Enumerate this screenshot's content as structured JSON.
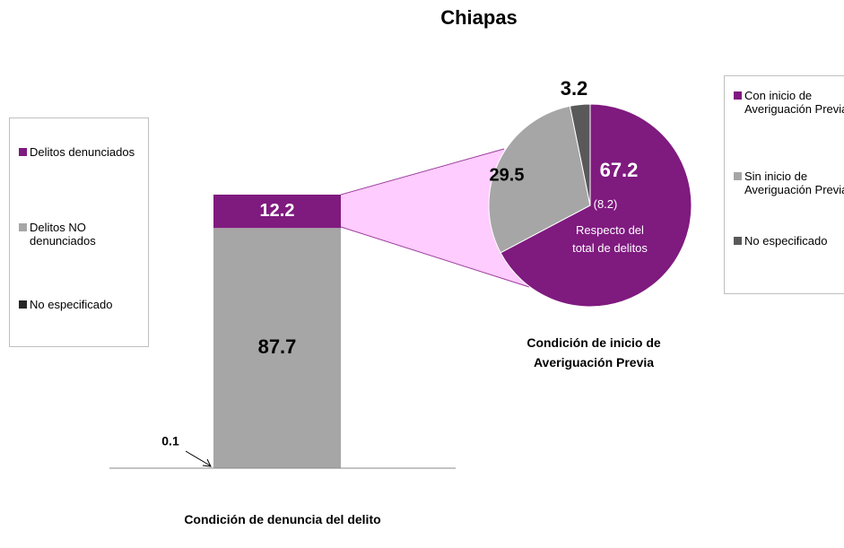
{
  "title": "Chiapas",
  "chart_data": [
    {
      "type": "stacked_bar",
      "categories": [
        "Condición de denuncia del delito"
      ],
      "series": [
        {
          "name": "Delitos denunciados",
          "color": "#7f1a7f",
          "values": [
            12.2
          ]
        },
        {
          "name": "Delitos NO denunciados",
          "color": "#a6a6a6",
          "values": [
            87.7
          ]
        },
        {
          "name": "No especificado",
          "color": "#262626",
          "values": [
            0.1
          ]
        }
      ],
      "ylim": [
        0,
        100
      ]
    },
    {
      "type": "pie",
      "title": "Condición de inicio de Averiguación Previa",
      "categories": [
        "Con inicio de Averiguación Previa",
        "Sin inicio de Averiguación Previa",
        "No especificado"
      ],
      "values": [
        67.2,
        29.5,
        3.2
      ],
      "colors": [
        "#7f1a7f",
        "#a6a6a6",
        "#595959"
      ],
      "annotations": [
        "(8.2)",
        "Respecto del total de delitos"
      ]
    }
  ]
}
